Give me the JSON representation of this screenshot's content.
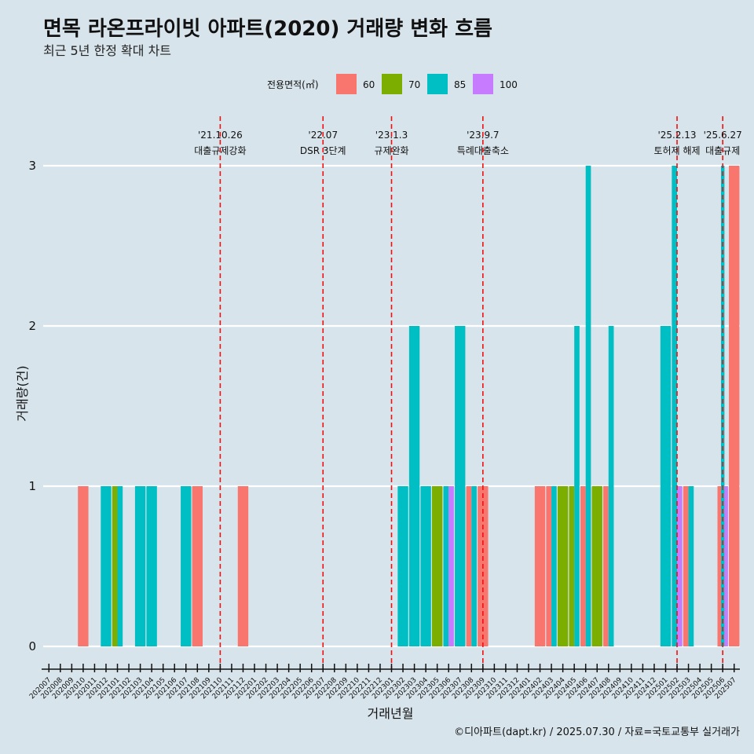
{
  "chart_data": {
    "type": "bar",
    "title": "면목 라온프라이빗 아파트(2020) 거래량 변화 흐름",
    "subtitle": "최근 5년 한정 확대 차트",
    "xlabel": "거래년월",
    "ylabel": "거래량(건)",
    "ylim": [
      0,
      3
    ],
    "yticks": [
      0,
      1,
      2,
      3
    ],
    "caption": "©디아파트(dapt.kr) / 2025.07.30 / 자료=국토교통부 실거래가",
    "legend": {
      "title": "전용면적(㎡)",
      "position": "top",
      "entries": [
        {
          "label": "60",
          "color": "#F8766D"
        },
        {
          "label": "70",
          "color": "#7CAE00"
        },
        {
          "label": "85",
          "color": "#00BFC4"
        },
        {
          "label": "100",
          "color": "#C77CFF"
        }
      ]
    },
    "categories": [
      "202007",
      "202008",
      "202009",
      "202010",
      "202011",
      "202012",
      "202101",
      "202102",
      "202103",
      "202104",
      "202105",
      "202106",
      "202107",
      "202108",
      "202109",
      "202110",
      "202111",
      "202112",
      "202201",
      "202202",
      "202203",
      "202204",
      "202205",
      "202206",
      "202207",
      "202208",
      "202209",
      "202210",
      "202211",
      "202212",
      "202301",
      "202302",
      "202303",
      "202304",
      "202305",
      "202306",
      "202307",
      "202308",
      "202309",
      "202310",
      "202311",
      "202312",
      "202401",
      "202402",
      "202403",
      "202404",
      "202405",
      "202406",
      "202407",
      "202408",
      "202409",
      "202410",
      "202411",
      "202412",
      "202501",
      "202502",
      "202503",
      "202504",
      "202505",
      "202506",
      "202507"
    ],
    "bars": [
      {
        "month": "202010",
        "values": {
          "60": 1
        }
      },
      {
        "month": "202012",
        "values": {
          "85": 1
        }
      },
      {
        "month": "202101",
        "values": {
          "70": 1,
          "85": 1
        }
      },
      {
        "month": "202103",
        "values": {
          "85": 1
        }
      },
      {
        "month": "202104",
        "values": {
          "85": 1
        }
      },
      {
        "month": "202107",
        "values": {
          "85": 1
        }
      },
      {
        "month": "202108",
        "values": {
          "60": 1
        }
      },
      {
        "month": "202112",
        "values": {
          "60": 1
        }
      },
      {
        "month": "202302",
        "values": {
          "85": 1
        }
      },
      {
        "month": "202303",
        "values": {
          "85": 2
        }
      },
      {
        "month": "202304",
        "values": {
          "85": 1
        }
      },
      {
        "month": "202305",
        "values": {
          "70": 1
        }
      },
      {
        "month": "202306",
        "values": {
          "85": 1,
          "100": 1
        }
      },
      {
        "month": "202307",
        "values": {
          "85": 2
        }
      },
      {
        "month": "202308",
        "values": {
          "60": 1,
          "85": 1
        }
      },
      {
        "month": "202309",
        "values": {
          "60": 1
        }
      },
      {
        "month": "202402",
        "values": {
          "60": 1
        }
      },
      {
        "month": "202403",
        "values": {
          "60": 1,
          "85": 1
        }
      },
      {
        "month": "202404",
        "values": {
          "70": 1
        }
      },
      {
        "month": "202405",
        "values": {
          "70": 1,
          "85": 2
        }
      },
      {
        "month": "202406",
        "values": {
          "60": 1,
          "85": 3
        }
      },
      {
        "month": "202407",
        "values": {
          "70": 1
        }
      },
      {
        "month": "202408",
        "values": {
          "60": 1,
          "85": 2
        }
      },
      {
        "month": "202501",
        "values": {
          "85": 2
        }
      },
      {
        "month": "202502",
        "values": {
          "85": 3,
          "100": 1
        }
      },
      {
        "month": "202503",
        "values": {
          "60": 1,
          "85": 1
        }
      },
      {
        "month": "202506",
        "values": {
          "60": 1,
          "85": 3,
          "100": 1
        }
      },
      {
        "month": "202507",
        "values": {
          "60": 3
        }
      }
    ],
    "annotations": [
      {
        "month": "202110",
        "date": "'21.10.26",
        "text": "대출규제강화"
      },
      {
        "month": "202207",
        "date": "'22.07",
        "text": "DSR 3단계"
      },
      {
        "month": "202301",
        "date": "'23.1.3",
        "text": "규제완화"
      },
      {
        "month": "202309",
        "date": "'23.9.7",
        "text": "특례대출축소"
      },
      {
        "month": "202502",
        "date": "'25.2.13",
        "text": "토허제 해제"
      },
      {
        "month": "202506",
        "date": "'25.6.27",
        "text": "대출규제"
      }
    ]
  }
}
